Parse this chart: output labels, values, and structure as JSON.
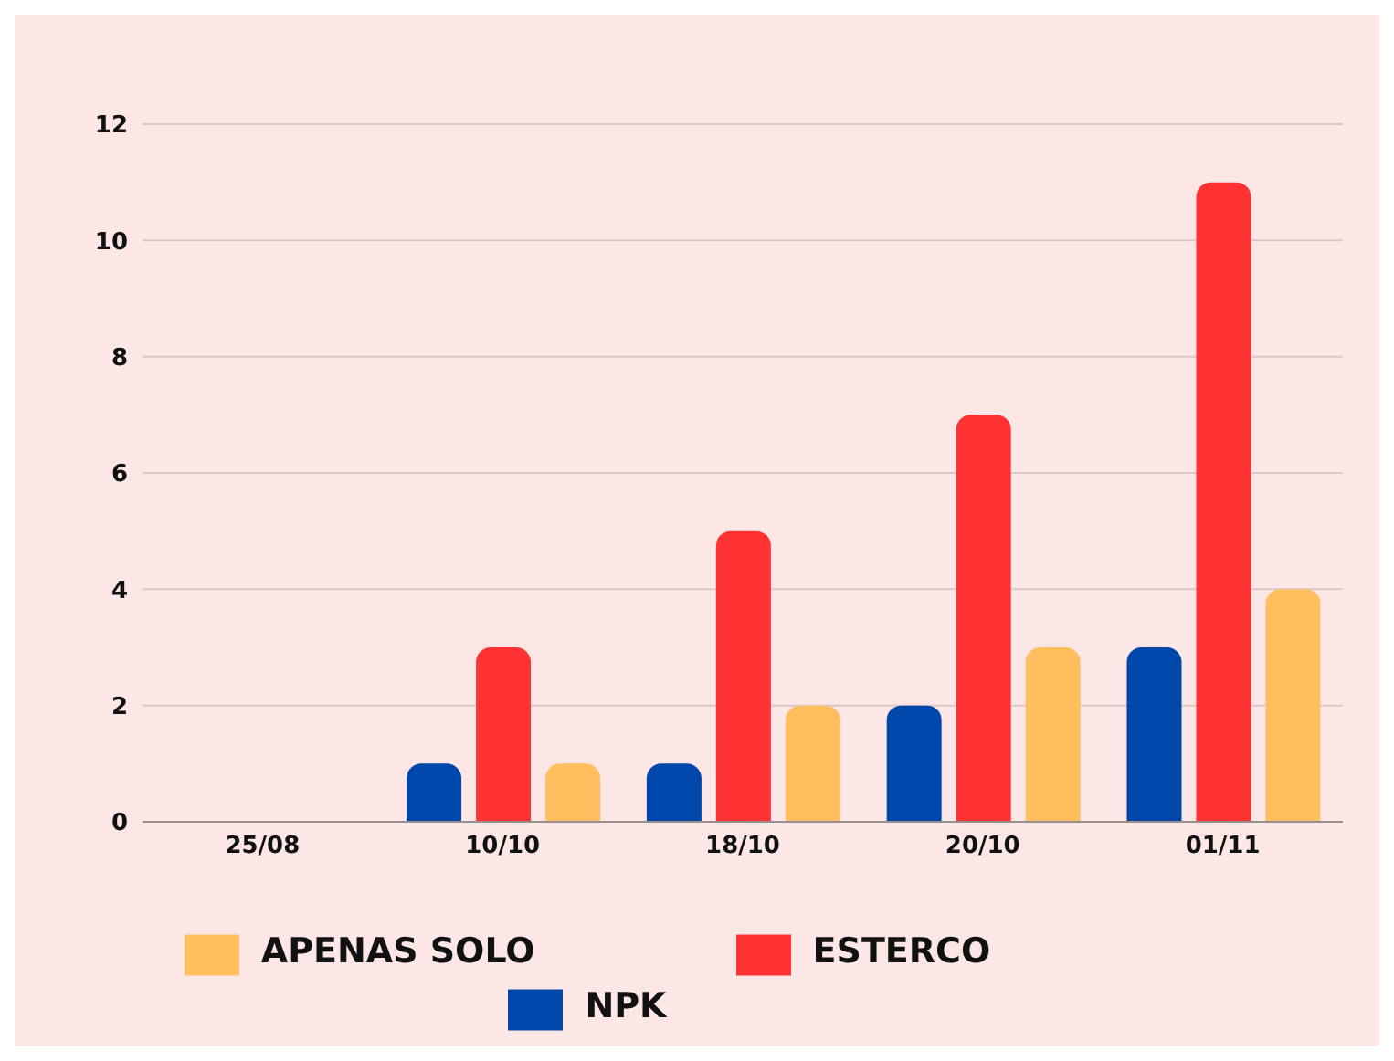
{
  "chart_data": {
    "type": "bar",
    "categories": [
      "25/08",
      "10/10",
      "18/10",
      "20/10",
      "01/11"
    ],
    "series": [
      {
        "name": "NPK",
        "color": "#0047ab",
        "values": [
          0,
          1,
          1,
          2,
          3
        ]
      },
      {
        "name": "ESTERCO",
        "color": "#ff3333",
        "values": [
          0,
          3,
          5,
          7,
          11
        ]
      },
      {
        "name": "APENAS SOLO",
        "color": "#ffbf5e",
        "values": [
          0,
          1,
          2,
          3,
          4
        ]
      }
    ],
    "ylim": [
      0,
      12
    ],
    "yticks": [
      0,
      2,
      4,
      6,
      8,
      10,
      12
    ],
    "grid": "y",
    "legend": "bottom"
  }
}
